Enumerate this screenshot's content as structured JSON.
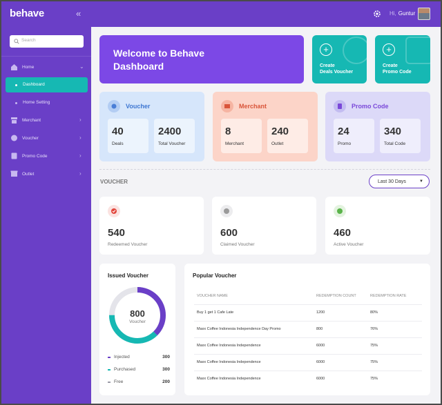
{
  "app": {
    "logo": "behave",
    "user_greeting": "Hi,",
    "user_name": "Guntur"
  },
  "sidebar": {
    "search_placeholder": "Search",
    "items": [
      {
        "label": "Home",
        "icon": "home-icon"
      },
      {
        "label": "Dashboard",
        "active": true
      },
      {
        "label": "Home Setting"
      },
      {
        "label": "Merchant",
        "icon": "store-icon"
      },
      {
        "label": "Voucher",
        "icon": "ticket-icon"
      },
      {
        "label": "Promo Code",
        "icon": "promo-icon"
      },
      {
        "label": "Outlet",
        "icon": "outlet-icon"
      }
    ]
  },
  "welcome": {
    "line1": "Welcome to Behave",
    "line2": "Dashboard"
  },
  "quick_actions": [
    {
      "line1": "Create",
      "line2": "Deals Voucher"
    },
    {
      "line1": "Create",
      "line2": "Promo Code"
    }
  ],
  "categories": [
    {
      "title": "Voucher",
      "stats": [
        {
          "value": "40",
          "label": "Deals"
        },
        {
          "value": "2400",
          "label": "Total Voucher"
        }
      ]
    },
    {
      "title": "Merchant",
      "stats": [
        {
          "value": "8",
          "label": "Merchant"
        },
        {
          "value": "240",
          "label": "Outlet"
        }
      ]
    },
    {
      "title": "Promo Code",
      "stats": [
        {
          "value": "24",
          "label": "Promo"
        },
        {
          "value": "340",
          "label": "Total Code"
        }
      ]
    }
  ],
  "voucher_section": {
    "title": "VOUCHER",
    "period": "Last 30 Days",
    "stats": [
      {
        "value": "540",
        "label": "Redeemed Voucher",
        "color": "#e2463c"
      },
      {
        "value": "600",
        "label": "Claimed Voucher",
        "color": "#9a9a9a"
      },
      {
        "value": "460",
        "label": "Active Voucher",
        "color": "#5ab34a"
      }
    ]
  },
  "issued": {
    "title": "Issued Voucher",
    "total": "800",
    "total_label": "Voucher",
    "legend": [
      {
        "name": "Injected",
        "value": "300",
        "color": "#6a3fc7"
      },
      {
        "name": "Purchased",
        "value": "300",
        "color": "#16b8b3"
      },
      {
        "name": "Free",
        "value": "200",
        "color": "#c9c9d1"
      }
    ]
  },
  "popular": {
    "title": "Popular Voucher",
    "columns": [
      "VOUCHER NAME",
      "REDEMPTION COUNT",
      "REDEMPTION RATE"
    ],
    "rows": [
      [
        "Buy 1 get 1 Cafe Late",
        "1200",
        "80%"
      ],
      [
        "Maxx Coffee Indonesia Independence Day Promo",
        "800",
        "76%"
      ],
      [
        "Maxx Coffee Indonesia Independence",
        "6000",
        "75%"
      ],
      [
        "Maxx Coffee Indonesia Independence",
        "6000",
        "75%"
      ],
      [
        "Maxx Coffee Indonesia Independence",
        "6000",
        "75%"
      ]
    ]
  }
}
